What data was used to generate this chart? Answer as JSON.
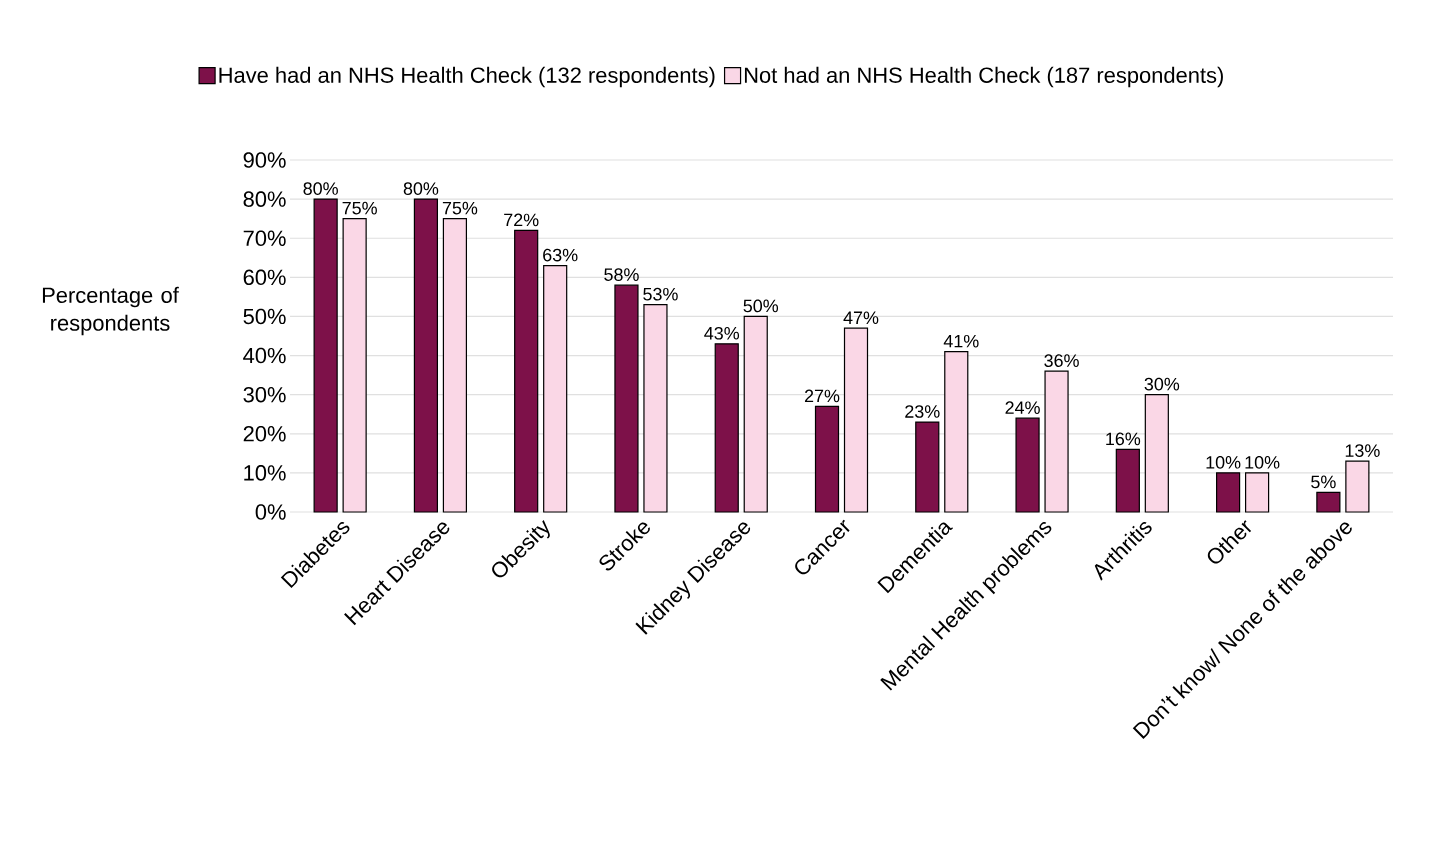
{
  "chart_data": {
    "type": "bar",
    "ylabel": "Percentage of respondents",
    "categories": [
      "Diabetes",
      "Heart Disease",
      "Obesity",
      "Stroke",
      "Kidney Disease",
      "Cancer",
      "Dementia",
      "Mental Health problems",
      "Arthritis",
      "Other",
      "Don’t know/ None of the above"
    ],
    "series": [
      {
        "name": "Have had an NHS Health Check (132 respondents)",
        "color": "#7d1149",
        "values": [
          80,
          80,
          72,
          58,
          43,
          27,
          23,
          24,
          16,
          10,
          5
        ],
        "value_labels": [
          "80%",
          "80%",
          "72%",
          "58%",
          "43%",
          "27%",
          "23%",
          "24%",
          "16%",
          "10%",
          "5%"
        ]
      },
      {
        "name": "Not had an NHS Health Check (187 respondents)",
        "color": "#fad7e6",
        "values": [
          75,
          75,
          63,
          53,
          50,
          47,
          41,
          36,
          30,
          10,
          13
        ],
        "value_labels": [
          "75%",
          "75%",
          "63%",
          "53%",
          "50%",
          "47%",
          "41%",
          "36%",
          "30%",
          "10%",
          "13%"
        ]
      }
    ],
    "ylim": [
      0,
      90
    ],
    "yticks": [
      {
        "value": 0,
        "label": "0%"
      },
      {
        "value": 10,
        "label": "10%"
      },
      {
        "value": 20,
        "label": "20%"
      },
      {
        "value": 30,
        "label": "30%"
      },
      {
        "value": 40,
        "label": "40%"
      },
      {
        "value": 50,
        "label": "50%"
      },
      {
        "value": 60,
        "label": "60%"
      },
      {
        "value": 70,
        "label": "70%"
      },
      {
        "value": 80,
        "label": "80%"
      },
      {
        "value": 90,
        "label": "90%"
      }
    ],
    "grid": "y",
    "legend": "top"
  }
}
